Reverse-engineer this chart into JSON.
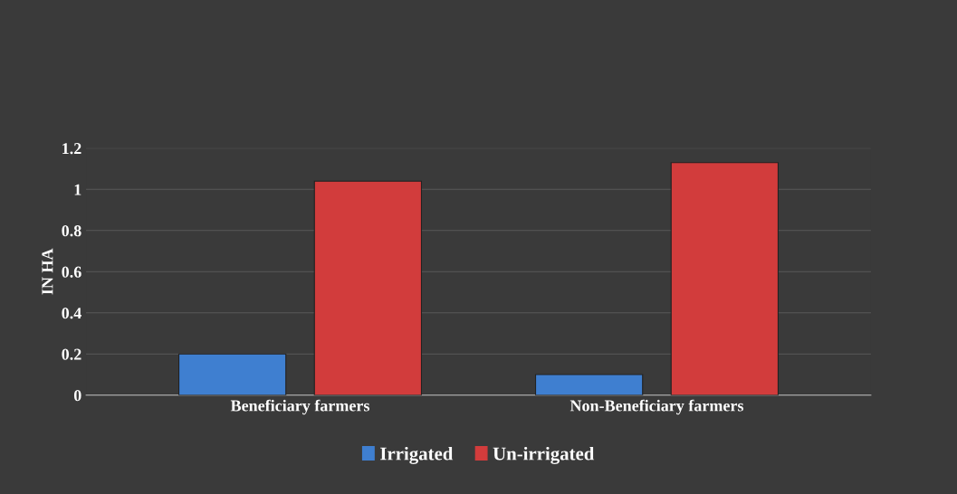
{
  "chart_data": {
    "type": "bar",
    "ylabel": "IN HA",
    "categories": [
      "Beneficiary farmers",
      "Non-Beneficiary farmers"
    ],
    "series": [
      {
        "name": "Irrigated",
        "color": "#3f7fd0",
        "values": [
          0.2,
          0.1
        ]
      },
      {
        "name": "Un-irrigated",
        "color": "#d23c3c",
        "values": [
          1.04,
          1.13
        ]
      }
    ],
    "ylim": [
      0,
      1.2
    ],
    "yticks": [
      0,
      0.2,
      0.4,
      0.6,
      0.8,
      1,
      1.2
    ],
    "grid": "y",
    "legend": "bottom"
  }
}
